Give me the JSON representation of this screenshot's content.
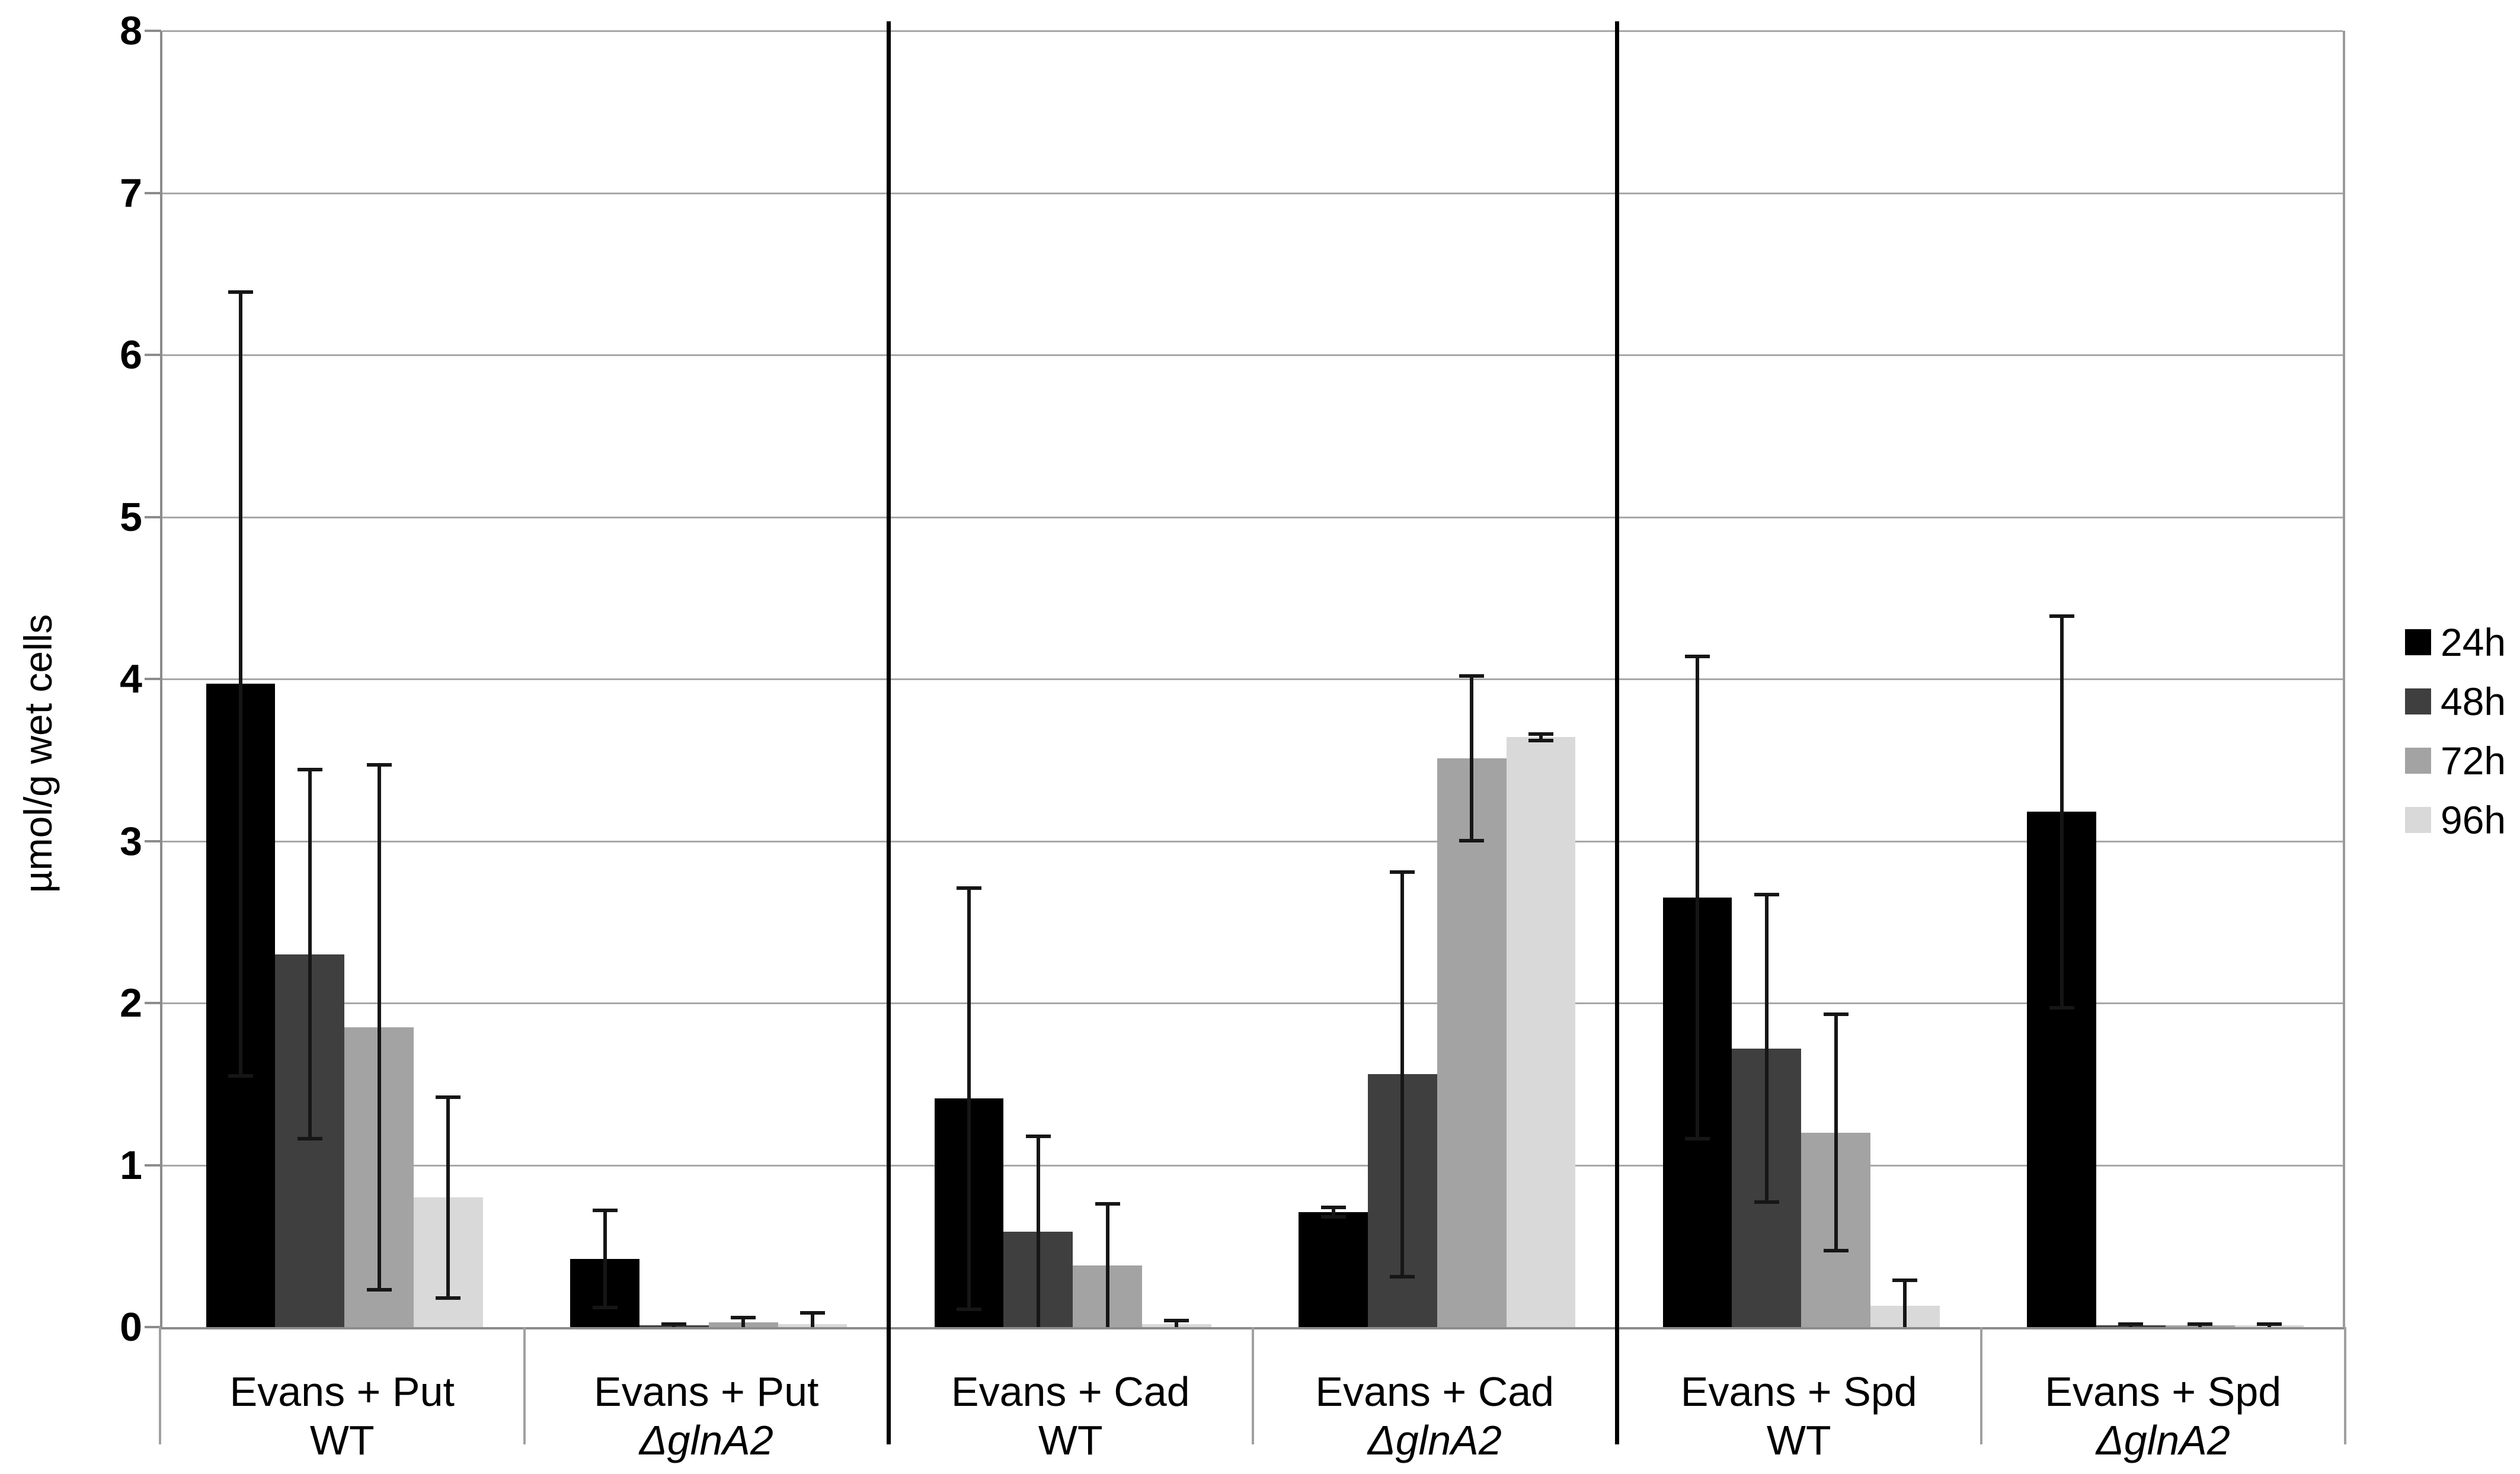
{
  "chart_data": {
    "type": "bar",
    "title": "",
    "xlabel": "",
    "ylabel": "µmol/g wet cells",
    "ylim": [
      0,
      8
    ],
    "y_ticks": [
      0,
      1,
      2,
      3,
      4,
      5,
      6,
      7,
      8
    ],
    "grid": true,
    "legend_position": "right",
    "error_bars": true,
    "separators_after_category": [
      2,
      4
    ],
    "categories": [
      {
        "medium": "Evans + Put",
        "strain": "WT",
        "strain_italic": false
      },
      {
        "medium": "Evans + Put",
        "strain": "ΔglnA2",
        "strain_italic": true
      },
      {
        "medium": "Evans + Cad",
        "strain": "WT",
        "strain_italic": false
      },
      {
        "medium": "Evans + Cad",
        "strain": "ΔglnA2",
        "strain_italic": true
      },
      {
        "medium": "Evans + Spd",
        "strain": "WT",
        "strain_italic": false
      },
      {
        "medium": "Evans + Spd",
        "strain": "ΔglnA2",
        "strain_italic": true
      }
    ],
    "series": [
      {
        "name": "24h",
        "color": "#000000",
        "values": [
          3.97,
          0.42,
          1.41,
          0.71,
          2.65,
          3.18
        ],
        "errors": [
          2.43,
          0.31,
          1.31,
          0.04,
          1.5,
          1.22
        ]
      },
      {
        "name": "48h",
        "color": "#3f3f3f",
        "values": [
          2.3,
          0.01,
          0.59,
          1.56,
          1.72,
          0.01
        ],
        "errors": [
          1.15,
          0.02,
          0.6,
          1.26,
          0.96,
          0.02
        ]
      },
      {
        "name": "72h",
        "color": "#a3a3a3",
        "values": [
          1.85,
          0.03,
          0.38,
          3.51,
          1.2,
          0.01
        ],
        "errors": [
          1.63,
          0.04,
          0.39,
          0.52,
          0.74,
          0.02
        ]
      },
      {
        "name": "96h",
        "color": "#d9d9d9",
        "values": [
          0.8,
          0.02,
          0.02,
          3.64,
          0.13,
          0.01
        ],
        "errors": [
          0.63,
          0.08,
          0.03,
          0.03,
          0.17,
          0.02
        ]
      }
    ]
  }
}
